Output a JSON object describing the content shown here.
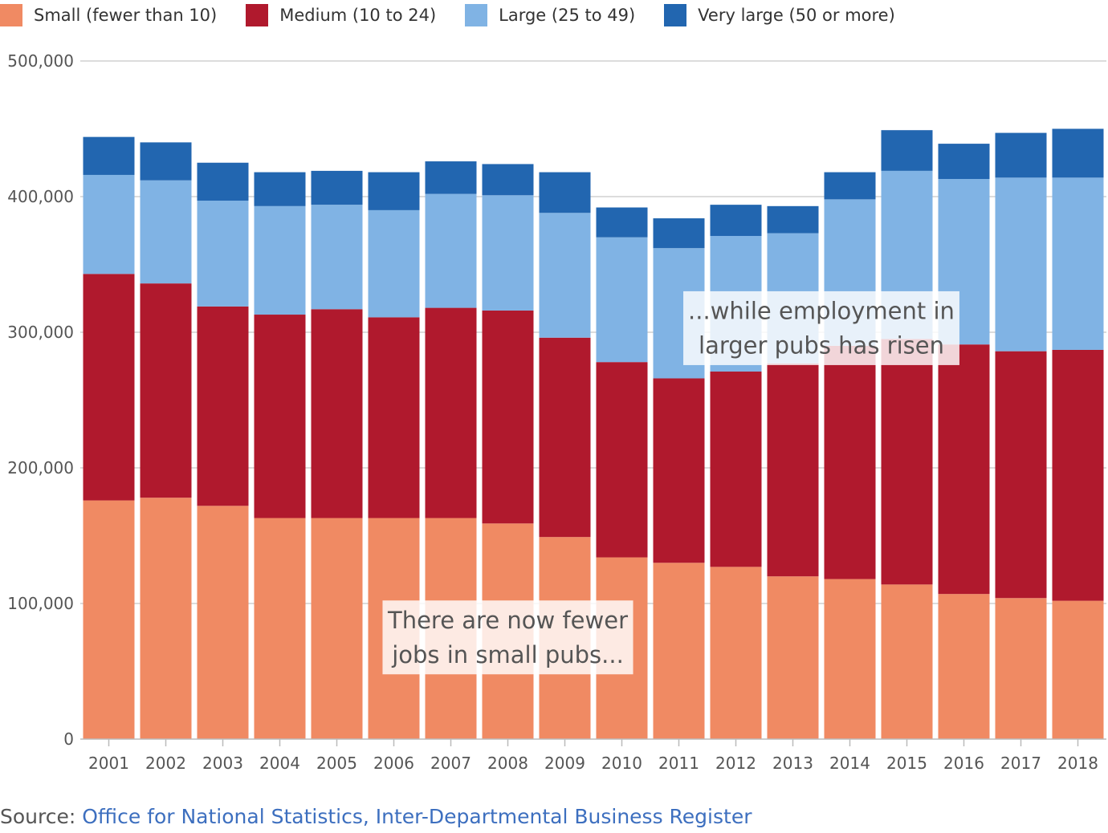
{
  "chart_data": {
    "type": "bar",
    "stacked": true,
    "categories": [
      "2001",
      "2002",
      "2003",
      "2004",
      "2005",
      "2006",
      "2007",
      "2008",
      "2009",
      "2010",
      "2011",
      "2012",
      "2013",
      "2014",
      "2015",
      "2016",
      "2017",
      "2018"
    ],
    "series": [
      {
        "name": "Small (fewer than 10)",
        "color": "#f08a63",
        "values": [
          176000,
          178000,
          172000,
          163000,
          163000,
          163000,
          163000,
          159000,
          149000,
          134000,
          130000,
          127000,
          120000,
          118000,
          114000,
          107000,
          104000,
          102000
        ]
      },
      {
        "name": "Medium (10 to 24)",
        "color": "#b0192d",
        "values": [
          167000,
          158000,
          147000,
          150000,
          154000,
          148000,
          155000,
          157000,
          147000,
          144000,
          136000,
          144000,
          157000,
          172000,
          181000,
          184000,
          182000,
          185000
        ]
      },
      {
        "name": "Large (25 to 49)",
        "color": "#80b3e4",
        "values": [
          73000,
          76000,
          78000,
          80000,
          77000,
          79000,
          84000,
          85000,
          92000,
          92000,
          96000,
          100000,
          96000,
          108000,
          124000,
          122000,
          128000,
          127000
        ]
      },
      {
        "name": "Very large (50 or more)",
        "color": "#2266b0",
        "values": [
          28000,
          28000,
          28000,
          25000,
          25000,
          28000,
          24000,
          23000,
          30000,
          22000,
          22000,
          23000,
          20000,
          20000,
          30000,
          26000,
          33000,
          36000
        ]
      }
    ],
    "ylim": [
      0,
      500000
    ],
    "yticks": [
      0,
      100000,
      200000,
      300000,
      400000,
      500000
    ],
    "ytick_labels": [
      "0",
      "100,000",
      "200,000",
      "300,000",
      "400,000",
      "500,000"
    ],
    "grid": true,
    "legend_position": "top-left",
    "annotations": [
      {
        "lines": [
          "There are now fewer",
          "jobs in small pubs..."
        ],
        "x": "2008",
        "y": 75000
      },
      {
        "lines": [
          "...while employment in",
          "larger pubs has risen"
        ],
        "x": "2013.5",
        "y": 303000
      }
    ]
  },
  "source": {
    "prefix": "Source: ",
    "link_text": "Office for National Statistics, Inter-Departmental Business Register"
  }
}
